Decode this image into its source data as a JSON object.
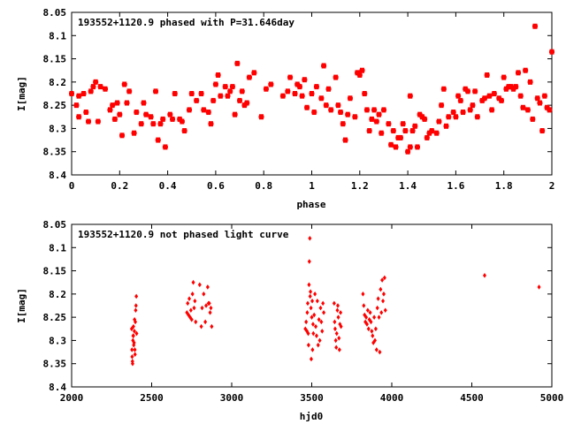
{
  "chart_data": [
    {
      "type": "scatter",
      "title": "193552+1120.9 phased with P=31.646day",
      "xlabel": "phase",
      "ylabel": "I[mag]",
      "xlim": [
        0,
        2
      ],
      "ylim": [
        8.05,
        8.4
      ],
      "y_inverted": true,
      "grid": false,
      "legend": "none",
      "color": "#ff0000",
      "x_ticks": [
        "0",
        "0.2",
        "0.4",
        "0.6",
        "0.8",
        "1",
        "1.2",
        "1.4",
        "1.6",
        "1.8",
        "2"
      ],
      "x_tick_values": [
        0,
        0.2,
        0.4,
        0.6,
        0.8,
        1.0,
        1.2,
        1.4,
        1.6,
        1.8,
        2.0
      ],
      "y_ticks": [
        "8.05",
        "8.1",
        "8.15",
        "8.2",
        "8.25",
        "8.3",
        "8.35",
        "8.4"
      ],
      "y_tick_values": [
        8.05,
        8.1,
        8.15,
        8.2,
        8.25,
        8.3,
        8.35,
        8.4
      ],
      "points": [
        [
          0.0,
          8.225
        ],
        [
          0.02,
          8.25
        ],
        [
          0.03,
          8.275
        ],
        [
          0.03,
          8.23
        ],
        [
          0.05,
          8.225
        ],
        [
          0.06,
          8.265
        ],
        [
          0.07,
          8.285
        ],
        [
          0.08,
          8.22
        ],
        [
          0.09,
          8.21
        ],
        [
          0.1,
          8.2
        ],
        [
          0.11,
          8.285
        ],
        [
          0.12,
          8.21
        ],
        [
          0.14,
          8.215
        ],
        [
          0.16,
          8.26
        ],
        [
          0.17,
          8.25
        ],
        [
          0.18,
          8.28
        ],
        [
          0.19,
          8.245
        ],
        [
          0.2,
          8.27
        ],
        [
          0.21,
          8.315
        ],
        [
          0.22,
          8.205
        ],
        [
          0.23,
          8.245
        ],
        [
          0.24,
          8.22
        ],
        [
          0.26,
          8.31
        ],
        [
          0.27,
          8.265
        ],
        [
          0.29,
          8.29
        ],
        [
          0.3,
          8.245
        ],
        [
          0.31,
          8.27
        ],
        [
          0.33,
          8.275
        ],
        [
          0.34,
          8.29
        ],
        [
          0.35,
          8.22
        ],
        [
          0.36,
          8.325
        ],
        [
          0.37,
          8.29
        ],
        [
          0.38,
          8.28
        ],
        [
          0.39,
          8.34
        ],
        [
          0.41,
          8.27
        ],
        [
          0.42,
          8.28
        ],
        [
          0.43,
          8.225
        ],
        [
          0.45,
          8.28
        ],
        [
          0.46,
          8.285
        ],
        [
          0.47,
          8.305
        ],
        [
          0.49,
          8.26
        ],
        [
          0.5,
          8.225
        ],
        [
          0.52,
          8.24
        ],
        [
          0.54,
          8.225
        ],
        [
          0.55,
          8.26
        ],
        [
          0.57,
          8.265
        ],
        [
          0.58,
          8.29
        ],
        [
          0.59,
          8.24
        ],
        [
          0.6,
          8.205
        ],
        [
          0.61,
          8.185
        ],
        [
          0.62,
          8.23
        ],
        [
          0.64,
          8.21
        ],
        [
          0.65,
          8.23
        ],
        [
          0.66,
          8.22
        ],
        [
          0.67,
          8.21
        ],
        [
          0.68,
          8.27
        ],
        [
          0.69,
          8.16
        ],
        [
          0.7,
          8.24
        ],
        [
          0.71,
          8.22
        ],
        [
          0.72,
          8.25
        ],
        [
          0.73,
          8.245
        ],
        [
          0.74,
          8.19
        ],
        [
          0.76,
          8.18
        ],
        [
          0.79,
          8.275
        ],
        [
          0.81,
          8.215
        ],
        [
          0.83,
          8.205
        ],
        [
          0.88,
          8.23
        ],
        [
          0.9,
          8.22
        ],
        [
          0.91,
          8.19
        ],
        [
          0.93,
          8.225
        ],
        [
          0.94,
          8.205
        ],
        [
          0.95,
          8.21
        ],
        [
          0.96,
          8.23
        ],
        [
          0.97,
          8.195
        ],
        [
          0.98,
          8.255
        ],
        [
          1.0,
          8.225
        ],
        [
          1.01,
          8.265
        ],
        [
          1.02,
          8.21
        ],
        [
          1.04,
          8.235
        ],
        [
          1.05,
          8.165
        ],
        [
          1.06,
          8.25
        ],
        [
          1.07,
          8.215
        ],
        [
          1.08,
          8.26
        ],
        [
          1.1,
          8.19
        ],
        [
          1.11,
          8.25
        ],
        [
          1.12,
          8.265
        ],
        [
          1.13,
          8.29
        ],
        [
          1.14,
          8.325
        ],
        [
          1.15,
          8.27
        ],
        [
          1.16,
          8.235
        ],
        [
          1.18,
          8.275
        ],
        [
          1.19,
          8.18
        ],
        [
          1.2,
          8.185
        ],
        [
          1.21,
          8.175
        ],
        [
          1.22,
          8.225
        ],
        [
          1.23,
          8.26
        ],
        [
          1.24,
          8.305
        ],
        [
          1.25,
          8.28
        ],
        [
          1.26,
          8.26
        ],
        [
          1.27,
          8.285
        ],
        [
          1.28,
          8.27
        ],
        [
          1.29,
          8.31
        ],
        [
          1.3,
          8.26
        ],
        [
          1.32,
          8.29
        ],
        [
          1.33,
          8.335
        ],
        [
          1.34,
          8.305
        ],
        [
          1.35,
          8.34
        ],
        [
          1.36,
          8.32
        ],
        [
          1.37,
          8.32
        ],
        [
          1.38,
          8.29
        ],
        [
          1.39,
          8.305
        ],
        [
          1.4,
          8.35
        ],
        [
          1.41,
          8.34
        ],
        [
          1.41,
          8.23
        ],
        [
          1.42,
          8.305
        ],
        [
          1.43,
          8.295
        ],
        [
          1.44,
          8.34
        ],
        [
          1.45,
          8.27
        ],
        [
          1.46,
          8.275
        ],
        [
          1.47,
          8.28
        ],
        [
          1.48,
          8.32
        ],
        [
          1.49,
          8.31
        ],
        [
          1.5,
          8.305
        ],
        [
          1.52,
          8.31
        ],
        [
          1.53,
          8.285
        ],
        [
          1.54,
          8.25
        ],
        [
          1.55,
          8.215
        ],
        [
          1.56,
          8.295
        ],
        [
          1.57,
          8.275
        ],
        [
          1.59,
          8.265
        ],
        [
          1.6,
          8.275
        ],
        [
          1.61,
          8.23
        ],
        [
          1.62,
          8.24
        ],
        [
          1.63,
          8.265
        ],
        [
          1.64,
          8.215
        ],
        [
          1.65,
          8.22
        ],
        [
          1.66,
          8.26
        ],
        [
          1.67,
          8.25
        ],
        [
          1.68,
          8.22
        ],
        [
          1.69,
          8.275
        ],
        [
          1.71,
          8.24
        ],
        [
          1.72,
          8.235
        ],
        [
          1.73,
          8.185
        ],
        [
          1.74,
          8.23
        ],
        [
          1.75,
          8.26
        ],
        [
          1.76,
          8.225
        ],
        [
          1.78,
          8.235
        ],
        [
          1.79,
          8.24
        ],
        [
          1.8,
          8.19
        ],
        [
          1.81,
          8.215
        ],
        [
          1.82,
          8.21
        ],
        [
          1.83,
          8.21
        ],
        [
          1.84,
          8.215
        ],
        [
          1.85,
          8.21
        ],
        [
          1.86,
          8.18
        ],
        [
          1.87,
          8.23
        ],
        [
          1.88,
          8.255
        ],
        [
          1.89,
          8.175
        ],
        [
          1.9,
          8.26
        ],
        [
          1.91,
          8.2
        ],
        [
          1.92,
          8.28
        ],
        [
          1.93,
          8.08
        ],
        [
          1.94,
          8.235
        ],
        [
          1.95,
          8.245
        ],
        [
          1.96,
          8.305
        ],
        [
          1.97,
          8.23
        ],
        [
          1.98,
          8.255
        ],
        [
          1.99,
          8.26
        ],
        [
          2.0,
          8.135
        ]
      ]
    },
    {
      "type": "scatter",
      "title": "193552+1120.9 not phased light curve",
      "xlabel": "hjd0",
      "ylabel": "I[mag]",
      "xlim": [
        2000,
        5000
      ],
      "ylim": [
        8.05,
        8.4
      ],
      "y_inverted": true,
      "grid": false,
      "legend": "none",
      "color": "#ff0000",
      "x_ticks": [
        "2000",
        "2500",
        "3000",
        "3500",
        "4000",
        "4500",
        "5000"
      ],
      "x_tick_values": [
        2000,
        2500,
        3000,
        3500,
        4000,
        4500,
        5000
      ],
      "y_ticks": [
        "8.05",
        "8.1",
        "8.15",
        "8.2",
        "8.25",
        "8.3",
        "8.35",
        "8.4"
      ],
      "y_tick_values": [
        8.05,
        8.1,
        8.15,
        8.2,
        8.25,
        8.3,
        8.35,
        8.4
      ],
      "points": [
        [
          2375,
          8.275
        ],
        [
          2377,
          8.32
        ],
        [
          2378,
          8.335
        ],
        [
          2380,
          8.345
        ],
        [
          2381,
          8.35
        ],
        [
          2383,
          8.3
        ],
        [
          2384,
          8.29
        ],
        [
          2386,
          8.27
        ],
        [
          2388,
          8.31
        ],
        [
          2390,
          8.305
        ],
        [
          2392,
          8.28
        ],
        [
          2393,
          8.255
        ],
        [
          2395,
          8.32
        ],
        [
          2396,
          8.33
        ],
        [
          2398,
          8.26
        ],
        [
          2400,
          8.235
        ],
        [
          2402,
          8.225
        ],
        [
          2404,
          8.205
        ],
        [
          2406,
          8.285
        ],
        [
          2386,
          8.29
        ],
        [
          2720,
          8.24
        ],
        [
          2725,
          8.22
        ],
        [
          2730,
          8.245
        ],
        [
          2735,
          8.21
        ],
        [
          2740,
          8.25
        ],
        [
          2745,
          8.235
        ],
        [
          2750,
          8.255
        ],
        [
          2755,
          8.2
        ],
        [
          2760,
          8.175
        ],
        [
          2765,
          8.23
        ],
        [
          2770,
          8.215
        ],
        [
          2775,
          8.26
        ],
        [
          2800,
          8.18
        ],
        [
          2810,
          8.27
        ],
        [
          2815,
          8.23
        ],
        [
          2825,
          8.2
        ],
        [
          2835,
          8.26
        ],
        [
          2840,
          8.225
        ],
        [
          2850,
          8.185
        ],
        [
          2855,
          8.22
        ],
        [
          2860,
          8.22
        ],
        [
          2865,
          8.24
        ],
        [
          2870,
          8.23
        ],
        [
          2875,
          8.27
        ],
        [
          3460,
          8.275
        ],
        [
          3465,
          8.26
        ],
        [
          3470,
          8.28
        ],
        [
          3472,
          8.24
        ],
        [
          3475,
          8.22
        ],
        [
          3478,
          8.285
        ],
        [
          3480,
          8.31
        ],
        [
          3483,
          8.18
        ],
        [
          3485,
          8.13
        ],
        [
          3488,
          8.08
        ],
        [
          3490,
          8.205
        ],
        [
          3492,
          8.195
        ],
        [
          3495,
          8.23
        ],
        [
          3497,
          8.34
        ],
        [
          3500,
          8.25
        ],
        [
          3503,
          8.215
        ],
        [
          3505,
          8.32
        ],
        [
          3508,
          8.265
        ],
        [
          3510,
          8.285
        ],
        [
          3515,
          8.245
        ],
        [
          3520,
          8.2
        ],
        [
          3525,
          8.27
        ],
        [
          3530,
          8.29
        ],
        [
          3535,
          8.215
        ],
        [
          3540,
          8.31
        ],
        [
          3545,
          8.255
        ],
        [
          3550,
          8.3
        ],
        [
          3555,
          8.23
        ],
        [
          3560,
          8.26
        ],
        [
          3565,
          8.28
        ],
        [
          3570,
          8.22
        ],
        [
          3575,
          8.24
        ],
        [
          3640,
          8.22
        ],
        [
          3643,
          8.26
        ],
        [
          3646,
          8.275
        ],
        [
          3650,
          8.3
        ],
        [
          3653,
          8.315
        ],
        [
          3656,
          8.285
        ],
        [
          3660,
          8.235
        ],
        [
          3663,
          8.225
        ],
        [
          3666,
          8.25
        ],
        [
          3670,
          8.295
        ],
        [
          3673,
          8.32
        ],
        [
          3676,
          8.265
        ],
        [
          3680,
          8.24
        ],
        [
          3683,
          8.27
        ],
        [
          3820,
          8.2
        ],
        [
          3825,
          8.225
        ],
        [
          3830,
          8.245
        ],
        [
          3835,
          8.26
        ],
        [
          3840,
          8.25
        ],
        [
          3845,
          8.265
        ],
        [
          3850,
          8.235
        ],
        [
          3855,
          8.275
        ],
        [
          3860,
          8.255
        ],
        [
          3865,
          8.24
        ],
        [
          3870,
          8.26
        ],
        [
          3875,
          8.28
        ],
        [
          3880,
          8.29
        ],
        [
          3885,
          8.305
        ],
        [
          3890,
          8.25
        ],
        [
          3895,
          8.3
        ],
        [
          3900,
          8.275
        ],
        [
          3905,
          8.32
        ],
        [
          3910,
          8.23
        ],
        [
          3915,
          8.21
        ],
        [
          3920,
          8.25
        ],
        [
          3925,
          8.325
        ],
        [
          3930,
          8.19
        ],
        [
          3935,
          8.24
        ],
        [
          3940,
          8.17
        ],
        [
          3945,
          8.215
        ],
        [
          3950,
          8.2
        ],
        [
          3955,
          8.165
        ],
        [
          3960,
          8.235
        ],
        [
          4580,
          8.16
        ],
        [
          4920,
          8.185
        ]
      ]
    }
  ]
}
